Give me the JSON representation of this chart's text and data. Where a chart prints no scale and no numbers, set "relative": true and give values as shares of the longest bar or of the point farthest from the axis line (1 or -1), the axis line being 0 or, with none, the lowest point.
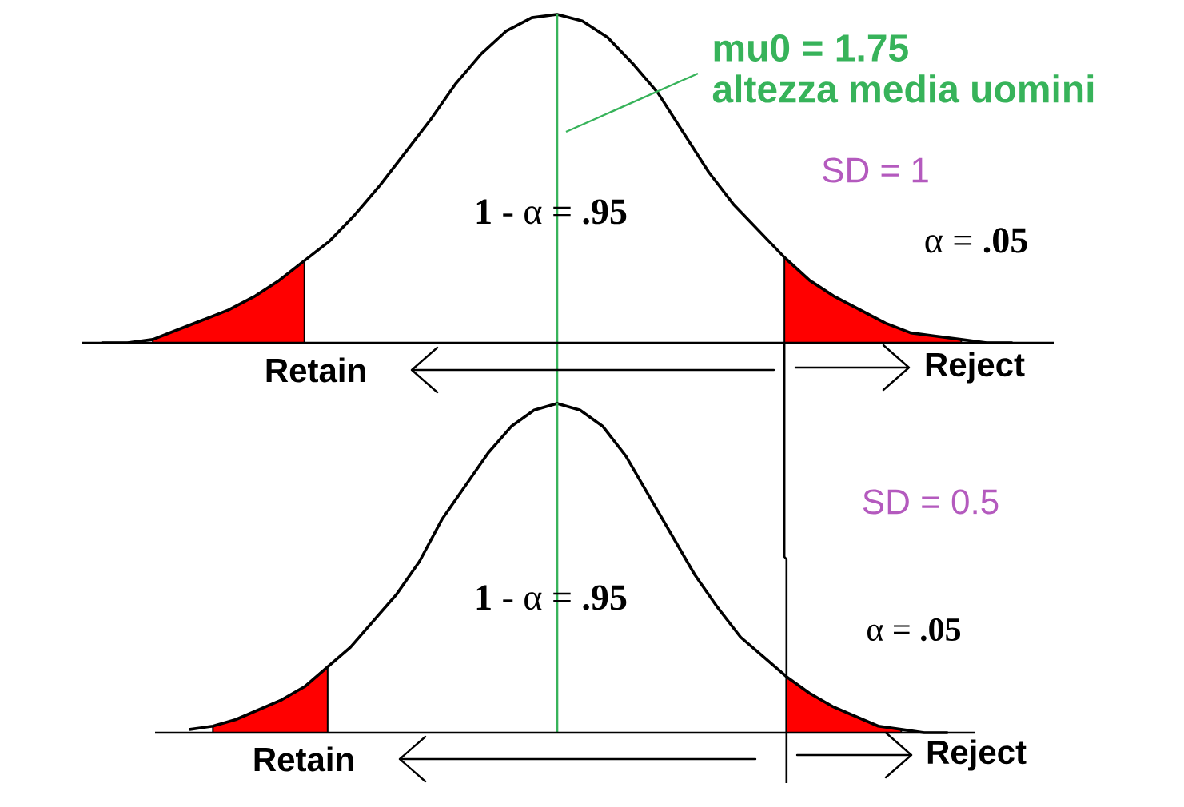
{
  "chart_data": [
    {
      "type": "line",
      "title": "SD = 1",
      "relative": true,
      "categories": [
        null,
        null,
        null,
        null,
        null,
        null,
        null,
        null,
        null,
        null,
        null,
        null,
        null,
        null,
        null,
        null,
        null,
        null,
        null,
        null,
        null,
        null,
        null,
        null,
        null,
        null,
        null,
        null,
        null,
        null,
        null,
        null,
        null,
        null,
        null,
        null,
        null
      ],
      "series": [
        {
          "type": "area",
          "color": "#ff0000",
          "values": [
            null,
            null,
            0.01,
            0.04,
            0.07,
            0.1,
            0.14,
            0.19,
            0.25,
            null,
            null,
            null,
            null,
            null,
            null,
            null,
            null,
            null,
            null,
            null,
            null,
            null,
            null,
            null,
            null,
            null,
            null,
            null,
            null,
            null,
            null,
            null,
            null,
            null,
            null,
            null,
            null
          ]
        },
        {
          "type": "area",
          "color": "#ff0000",
          "values": [
            null,
            null,
            null,
            null,
            null,
            null,
            null,
            null,
            null,
            null,
            null,
            null,
            null,
            null,
            null,
            null,
            null,
            null,
            null,
            null,
            null,
            null,
            null,
            null,
            null,
            null,
            null,
            0.26,
            0.19,
            0.14,
            0.1,
            0.06,
            0.03,
            0.02,
            0.01,
            null,
            null
          ]
        },
        {
          "color": "#000000",
          "values": [
            0,
            0,
            0.01,
            0.04,
            0.07,
            0.1,
            0.14,
            0.19,
            0.25,
            0.31,
            0.39,
            0.48,
            0.58,
            0.68,
            0.79,
            0.88,
            0.95,
            0.99,
            1,
            0.98,
            0.93,
            0.85,
            0.76,
            0.64,
            0.52,
            0.42,
            0.34,
            0.26,
            0.19,
            0.14,
            0.1,
            0.06,
            0.03,
            0.02,
            0.01,
            0,
            0
          ]
        }
      ],
      "ref_lines": [
        {
          "axis": "x",
          "label": "mu0 = 1.75",
          "color": "#37b35a"
        }
      ],
      "annotations": [
        "altezza media uomini",
        "**1** - α = **.95**",
        "α = **.05**",
        "Retain",
        "Reject"
      ]
    },
    {
      "type": "line",
      "title": "SD = 0.5",
      "relative": true,
      "categories": [
        null,
        null,
        null,
        null,
        null,
        null,
        null,
        null,
        null,
        null,
        null,
        null,
        null,
        null,
        null,
        null,
        null,
        null,
        null,
        null,
        null,
        null,
        null,
        null,
        null,
        null,
        null,
        null,
        null,
        null,
        null,
        null,
        null,
        null,
        null
      ],
      "series": [
        {
          "type": "area",
          "color": "#ff0000",
          "values": [
            null,
            null,
            0.02,
            0.04,
            0.07,
            0.1,
            0.14,
            0.2,
            null,
            null,
            null,
            null,
            null,
            null,
            null,
            null,
            null,
            null,
            null,
            null,
            null,
            null,
            null,
            null,
            null,
            null,
            null,
            null,
            null,
            null,
            null,
            null,
            null,
            null,
            null
          ]
        },
        {
          "type": "area",
          "color": "#ff0000",
          "values": [
            null,
            null,
            null,
            null,
            null,
            null,
            null,
            null,
            null,
            null,
            null,
            null,
            null,
            null,
            null,
            null,
            null,
            null,
            null,
            null,
            null,
            null,
            null,
            null,
            null,
            null,
            null,
            0.17,
            0.12,
            0.08,
            0.05,
            0.02,
            0.01,
            null,
            null
          ]
        },
        {
          "color": "#000000",
          "values": [
            null,
            0.01,
            0.02,
            0.04,
            0.07,
            0.1,
            0.14,
            0.2,
            0.26,
            0.34,
            0.42,
            0.52,
            0.65,
            0.75,
            0.85,
            0.93,
            0.98,
            1,
            0.98,
            0.93,
            0.84,
            0.72,
            0.6,
            0.48,
            0.38,
            0.29,
            0.23,
            0.17,
            0.12,
            0.08,
            0.05,
            0.02,
            0.01,
            0,
            0
          ]
        }
      ],
      "ref_lines": [
        {
          "axis": "x",
          "color": "#37b35a"
        }
      ],
      "annotations": [
        "**1** - α = **.95**",
        "α = **.05**",
        "Retain",
        "Reject"
      ]
    }
  ]
}
